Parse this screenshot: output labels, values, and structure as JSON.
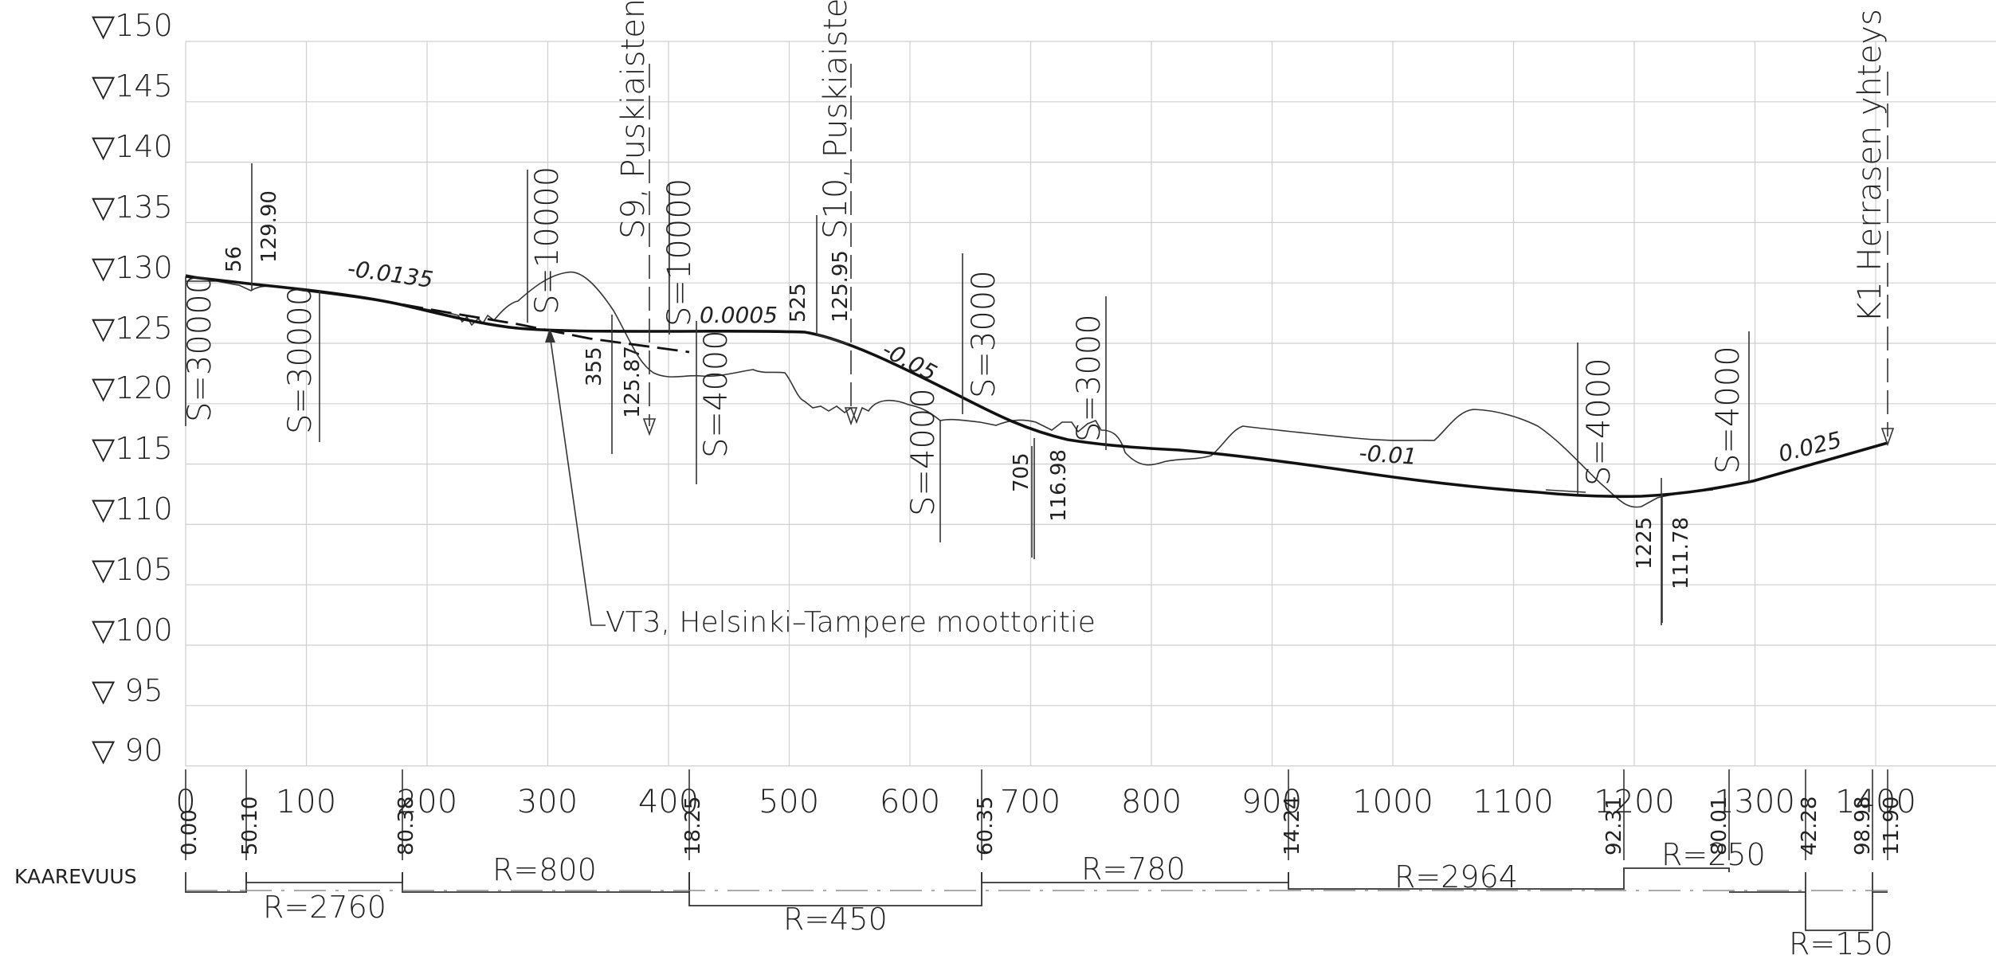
{
  "elevation_labels": [
    "▽150",
    "▽145",
    "▽140",
    "▽135",
    "▽130",
    "▽125",
    "▽120",
    "▽115",
    "▽110",
    "▽105",
    "▽100",
    "▽ 95",
    "▽ 90"
  ],
  "distance_labels": [
    "0",
    "100",
    "200",
    "300",
    "400",
    "500",
    "600",
    "700",
    "800",
    "900",
    "1000",
    "1100",
    "1200",
    "1300",
    "1400"
  ],
  "station_labels": [
    "0.00",
    "50.10",
    "80.38",
    "18.25",
    "60.35",
    "14.24",
    "92.31",
    "80.01",
    "42.28",
    "98.98",
    "11.90"
  ],
  "curvature": {
    "heading": "KAAREVUUS",
    "radii": [
      "R=2760",
      "R=800",
      "R=450",
      "R=780",
      "R=2964",
      "R=250",
      "R=150"
    ]
  },
  "vertical_curves": [
    "S=30000",
    "S=30000",
    "S=10000",
    "S=10000",
    "S=4000",
    "S=4000",
    "S=3000",
    "S=3000",
    "S=4000",
    "S=4000"
  ],
  "grades": [
    "-0.0135",
    "0.0005",
    "-0.05",
    "-0.01",
    "0.025"
  ],
  "vertex_labels": [
    "56",
    "129.90",
    "355",
    "125.87",
    "525",
    "125.95",
    "705",
    "116.98",
    "1225",
    "111.78"
  ],
  "crossings": [
    "S9, Puskiaisten",
    "S10, Puskiaiste",
    "K1 Herrasen yhteys"
  ],
  "callout": "VT3, Helsinki–Tampere moottoritie"
}
